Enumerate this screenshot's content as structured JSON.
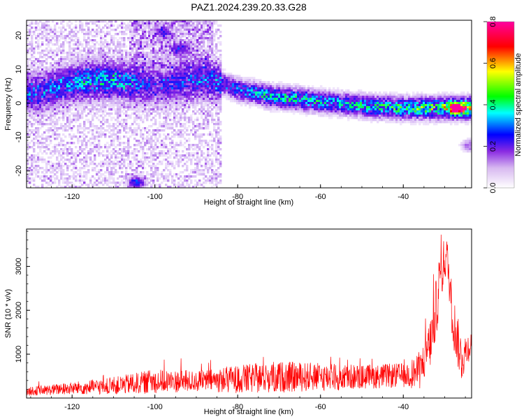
{
  "figure": {
    "title": "PAZ1.2024.239.20.33.G28"
  },
  "chart_data": [
    {
      "type": "heatmap",
      "title": "PAZ1.2024.239.20.33.G28",
      "xlabel": "Height of straight line (km)",
      "ylabel": "Frequency (Hz)",
      "xlim": [
        -131,
        -23.5
      ],
      "ylim": [
        -25,
        24.5
      ],
      "xticks": [
        -120,
        -100,
        -80,
        -60,
        -40
      ],
      "yticks": [
        20,
        10,
        0,
        -10,
        -20
      ],
      "colorbar": {
        "label": "Normalized spectral amplitude",
        "range": [
          0,
          0.8
        ],
        "ticks": [
          0.0,
          0.2,
          0.4,
          0.6,
          0.8
        ],
        "colors": [
          "#ffffff",
          "#d7b8f0",
          "#8a2be2",
          "#0000ff",
          "#00ffff",
          "#00ff00",
          "#ffff00",
          "#ff0000",
          "#ff00a0"
        ]
      },
      "ridge": {
        "description_points": [
          [
            -128,
            3
          ],
          [
            -120,
            6
          ],
          [
            -112,
            7
          ],
          [
            -106,
            6
          ],
          [
            -100,
            5
          ],
          [
            -88,
            7
          ],
          [
            -84,
            6
          ],
          [
            -80,
            4
          ],
          [
            -72,
            2
          ],
          [
            -64,
            1
          ],
          [
            -56,
            0
          ],
          [
            -48,
            -1
          ],
          [
            -40,
            -1.5
          ],
          [
            -32,
            -1.5
          ],
          [
            -24,
            -1.5
          ]
        ],
        "peak_amplitude": [
          0.25,
          0.3,
          0.35,
          0.3,
          0.2,
          0.25,
          0.3,
          0.3,
          0.4,
          0.4,
          0.35,
          0.4,
          0.45,
          0.5,
          0.55
        ]
      },
      "blobs": [
        {
          "x": -104.5,
          "y": -23.5,
          "amp": 0.3
        },
        {
          "x": -98,
          "y": 21,
          "amp": 0.18
        },
        {
          "x": -94,
          "y": 16,
          "amp": 0.2
        },
        {
          "x": -27,
          "y": -1.5,
          "amp": 0.8
        },
        {
          "x": -24,
          "y": -12.5,
          "amp": 0.15
        }
      ]
    },
    {
      "type": "line",
      "xlabel": "Height of straight line (km)",
      "ylabel": "SNR (10 * v/v)",
      "xlim": [
        -131,
        -23.5
      ],
      "ylim": [
        0,
        3850
      ],
      "xticks": [
        -120,
        -100,
        -80,
        -60,
        -40
      ],
      "yticks": [
        1000,
        2000,
        3000
      ],
      "color": "#ff0000",
      "envelope": {
        "x": [
          -131,
          -120,
          -110,
          -100,
          -90,
          -80,
          -70,
          -60,
          -50,
          -40,
          -36,
          -33,
          -31,
          -29.5,
          -28,
          -26,
          -24
        ],
        "mean": [
          150,
          220,
          280,
          380,
          380,
          430,
          480,
          480,
          480,
          520,
          600,
          1400,
          2800,
          3300,
          1800,
          900,
          1200
        ],
        "amp": [
          120,
          180,
          250,
          350,
          300,
          400,
          450,
          400,
          350,
          350,
          500,
          800,
          900,
          500,
          800,
          700,
          400
        ]
      }
    }
  ]
}
